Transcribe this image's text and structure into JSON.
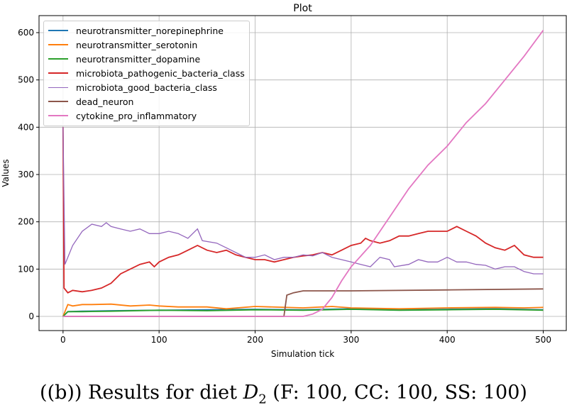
{
  "chart_data": {
    "type": "line",
    "title": "Plot",
    "xlabel": "Simulation tick",
    "ylabel": "Values",
    "xlim": [
      -25,
      524
    ],
    "ylim": [
      -30,
      636
    ],
    "xticks": [
      0,
      100,
      200,
      300,
      400,
      500
    ],
    "yticks": [
      0,
      100,
      200,
      300,
      400,
      500,
      600
    ],
    "grid": true,
    "legend": "top-left",
    "series": [
      {
        "name": "neurotransmitter_norepinephrine",
        "color": "#1f77b4",
        "x": [
          0,
          5,
          20,
          50,
          100,
          150,
          200,
          250,
          300,
          350,
          400,
          450,
          500
        ],
        "y": [
          0,
          10,
          11,
          12,
          13,
          14,
          15,
          14,
          16,
          14,
          15,
          16,
          14
        ]
      },
      {
        "name": "neurotransmitter_serotonin",
        "color": "#ff7f0e",
        "x": [
          0,
          5,
          10,
          20,
          30,
          50,
          70,
          90,
          100,
          120,
          150,
          170,
          200,
          250,
          280,
          300,
          350,
          400,
          450,
          480,
          500
        ],
        "y": [
          0,
          25,
          22,
          25,
          25,
          26,
          22,
          24,
          22,
          20,
          20,
          16,
          21,
          18,
          21,
          18,
          16,
          18,
          19,
          18,
          19
        ]
      },
      {
        "name": "neurotransmitter_dopamine",
        "color": "#2ca02c",
        "x": [
          0,
          5,
          20,
          50,
          100,
          150,
          200,
          250,
          300,
          350,
          400,
          450,
          500
        ],
        "y": [
          0,
          10,
          10,
          11,
          13,
          12,
          14,
          13,
          15,
          13,
          14,
          15,
          13
        ]
      },
      {
        "name": "microbiota_pathogenic_bacteria_class",
        "color": "#d62728",
        "x": [
          0,
          1,
          5,
          10,
          20,
          30,
          40,
          50,
          60,
          70,
          80,
          90,
          95,
          100,
          110,
          120,
          130,
          140,
          150,
          160,
          170,
          180,
          190,
          200,
          210,
          220,
          230,
          240,
          250,
          260,
          270,
          280,
          290,
          300,
          310,
          315,
          320,
          330,
          340,
          350,
          360,
          370,
          380,
          390,
          400,
          410,
          420,
          430,
          440,
          450,
          460,
          470,
          480,
          490,
          500
        ],
        "y": [
          400,
          60,
          50,
          55,
          52,
          55,
          60,
          70,
          90,
          100,
          110,
          115,
          105,
          115,
          125,
          130,
          140,
          150,
          140,
          135,
          140,
          130,
          125,
          120,
          120,
          115,
          120,
          125,
          128,
          130,
          135,
          130,
          140,
          150,
          155,
          165,
          160,
          155,
          160,
          170,
          170,
          175,
          180,
          180,
          180,
          190,
          180,
          170,
          155,
          145,
          140,
          150,
          130,
          125,
          125
        ]
      },
      {
        "name": "microbiota_good_bacteria_class",
        "color": "#9467bd",
        "x": [
          0,
          2,
          10,
          20,
          30,
          40,
          45,
          50,
          60,
          70,
          80,
          90,
          100,
          110,
          120,
          130,
          140,
          145,
          160,
          170,
          180,
          190,
          200,
          210,
          220,
          230,
          240,
          250,
          260,
          270,
          280,
          290,
          300,
          310,
          320,
          330,
          340,
          345,
          360,
          370,
          380,
          390,
          400,
          410,
          420,
          430,
          440,
          450,
          460,
          470,
          480,
          490,
          500
        ],
        "y": [
          400,
          110,
          150,
          180,
          195,
          190,
          198,
          190,
          185,
          180,
          185,
          175,
          175,
          180,
          175,
          165,
          185,
          160,
          155,
          145,
          135,
          125,
          125,
          130,
          120,
          125,
          125,
          130,
          128,
          135,
          125,
          120,
          115,
          110,
          105,
          125,
          120,
          105,
          110,
          120,
          115,
          115,
          125,
          115,
          115,
          110,
          108,
          100,
          105,
          105,
          95,
          90,
          90
        ]
      },
      {
        "name": "dead_neuron",
        "color": "#8c564b",
        "x": [
          0,
          230,
          233,
          240,
          250,
          300,
          400,
          500
        ],
        "y": [
          0,
          0,
          45,
          50,
          54,
          54,
          56,
          58
        ]
      },
      {
        "name": "cytokine_pro_inflammatory",
        "color": "#e377c2",
        "x": [
          0,
          250,
          260,
          270,
          280,
          290,
          300,
          320,
          340,
          360,
          380,
          400,
          420,
          440,
          460,
          480,
          500
        ],
        "y": [
          0,
          0,
          5,
          15,
          40,
          75,
          105,
          150,
          210,
          270,
          320,
          360,
          410,
          450,
          500,
          550,
          605
        ]
      }
    ]
  },
  "caption": {
    "prefix": "((b)) Results for diet ",
    "var": "D",
    "sub": "2",
    "suffix": " (F: 100, CC: 100, SS: 100)"
  }
}
